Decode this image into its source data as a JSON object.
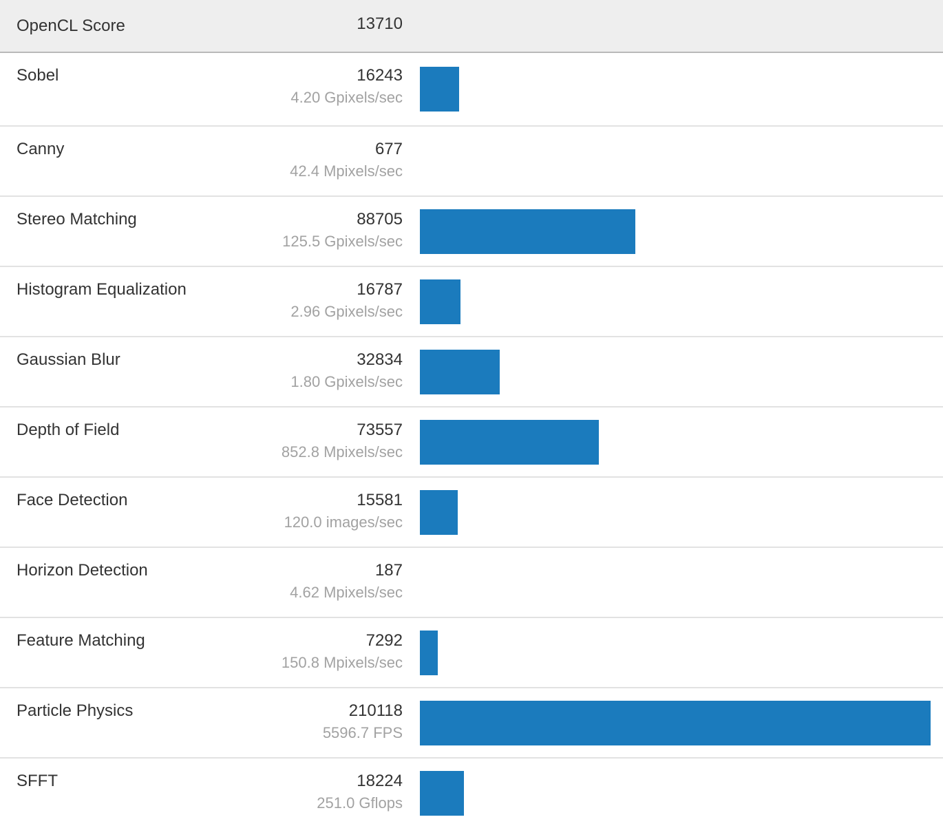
{
  "header": {
    "label": "OpenCL Score",
    "value": "13710"
  },
  "colors": {
    "bar": "#1b7bbd",
    "header_bg": "#eeeeee"
  },
  "benchmarks": [
    {
      "name": "Sobel",
      "score": 16243,
      "rate": "4.20 Gpixels/sec"
    },
    {
      "name": "Canny",
      "score": 677,
      "rate": "42.4 Mpixels/sec"
    },
    {
      "name": "Stereo Matching",
      "score": 88705,
      "rate": "125.5 Gpixels/sec"
    },
    {
      "name": "Histogram Equalization",
      "score": 16787,
      "rate": "2.96 Gpixels/sec"
    },
    {
      "name": "Gaussian Blur",
      "score": 32834,
      "rate": "1.80 Gpixels/sec"
    },
    {
      "name": "Depth of Field",
      "score": 73557,
      "rate": "852.8 Mpixels/sec"
    },
    {
      "name": "Face Detection",
      "score": 15581,
      "rate": "120.0 images/sec"
    },
    {
      "name": "Horizon Detection",
      "score": 187,
      "rate": "4.62 Mpixels/sec"
    },
    {
      "name": "Feature Matching",
      "score": 7292,
      "rate": "150.8 Mpixels/sec"
    },
    {
      "name": "Particle Physics",
      "score": 210118,
      "rate": "5596.7 FPS"
    },
    {
      "name": "SFFT",
      "score": 18224,
      "rate": "251.0 Gflops"
    }
  ],
  "chart_data": {
    "type": "bar",
    "orientation": "horizontal",
    "title": "OpenCL Score",
    "total_score": 13710,
    "categories": [
      "Sobel",
      "Canny",
      "Stereo Matching",
      "Histogram Equalization",
      "Gaussian Blur",
      "Depth of Field",
      "Face Detection",
      "Horizon Detection",
      "Feature Matching",
      "Particle Physics",
      "SFFT"
    ],
    "values": [
      16243,
      677,
      88705,
      16787,
      32834,
      73557,
      15581,
      187,
      7292,
      210118,
      18224
    ],
    "rate_labels": [
      "4.20 Gpixels/sec",
      "42.4 Mpixels/sec",
      "125.5 Gpixels/sec",
      "2.96 Gpixels/sec",
      "1.80 Gpixels/sec",
      "852.8 Mpixels/sec",
      "120.0 images/sec",
      "4.62 Mpixels/sec",
      "150.8 Mpixels/sec",
      "5596.7 FPS",
      "251.0 Gflops"
    ],
    "xlim": [
      0,
      210118
    ],
    "grid": false,
    "legend": false,
    "bar_color": "#1b7bbd"
  }
}
